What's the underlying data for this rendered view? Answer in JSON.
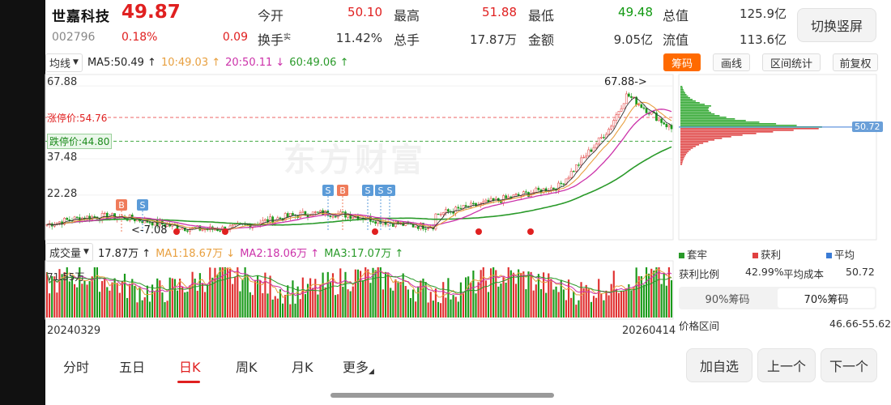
{
  "quote": {
    "name": "世嘉科技",
    "price": "49.87",
    "code": "002796",
    "change_pct": "0.18%",
    "change_amt": "0.09",
    "open_label": "今开",
    "open_value": "50.10",
    "high_label": "最高",
    "high_value": "51.88",
    "low_label": "最低",
    "low_value": "49.48",
    "mktcap_label": "总值",
    "mktcap_value": "125.9亿",
    "turnover_label": "换手",
    "turnover_sup": "实",
    "turnover_value": "11.42%",
    "volume_label": "总手",
    "volume_value": "17.87万",
    "amount_label": "金额",
    "amount_value": "9.05亿",
    "float_label": "流值",
    "float_value": "113.6亿",
    "switch_label": "切换竖屏"
  },
  "ma_row": {
    "selector": "均线",
    "ma5": "MA5:50.49 ↑",
    "ma10": "10:49.03 ↑",
    "ma20": "20:50.11 ↓",
    "ma60": "60:49.06 ↑"
  },
  "toolbar": {
    "chips": "筹码",
    "draw": "画线",
    "range": "区间统计",
    "adjust": "前复权"
  },
  "price_chart": {
    "axis_labels": [
      "67.88",
      "37.48",
      "22.28"
    ],
    "axis_label_values": [
      67.88,
      37.48,
      22.28
    ],
    "limit_up_label": "涨停价:54.76",
    "limit_up_value": 54.76,
    "limit_down_label": "跌停价:44.80",
    "limit_down_value": 44.8,
    "high_annotation": "67.88->",
    "low_annotation": "<-7.08",
    "buy_marker": "B",
    "sell_marker": "S",
    "start_date": "20240329",
    "end_date": "20260414",
    "chip_avg_badge": "50.72",
    "watermark": "东方财富"
  },
  "volume": {
    "selector": "成交量",
    "vol": "17.87万 ↑",
    "ma1": "MA1:18.67万 ↓",
    "ma2": "MA2:18.06万 ↑",
    "ma3": "MA3:17.07万 ↑",
    "max_label": "71.55万"
  },
  "chip_panel": {
    "legend_trapped": "套牢",
    "legend_profit": "获利",
    "legend_avg": "平均",
    "profit_ratio_label": "获利比例",
    "profit_ratio_value": "42.99%",
    "avg_cost_label": "平均成本",
    "avg_cost_value": "50.72",
    "tab_90": "90%筹码",
    "tab_70": "70%筹码",
    "price_range_label": "价格区间",
    "price_range_value": "46.66-55.62"
  },
  "periods": [
    "分时",
    "五日",
    "日K",
    "周K",
    "月K",
    "更多"
  ],
  "bottom_buttons": {
    "add": "加自选",
    "prev": "上一个",
    "next": "下一个"
  },
  "colors": {
    "up": "#e02020",
    "down": "#119911",
    "accent": "#ff6a00",
    "ma5": "#222222",
    "ma10": "#e8a040",
    "ma20": "#cc33aa",
    "ma60": "#2a9a2a"
  }
}
